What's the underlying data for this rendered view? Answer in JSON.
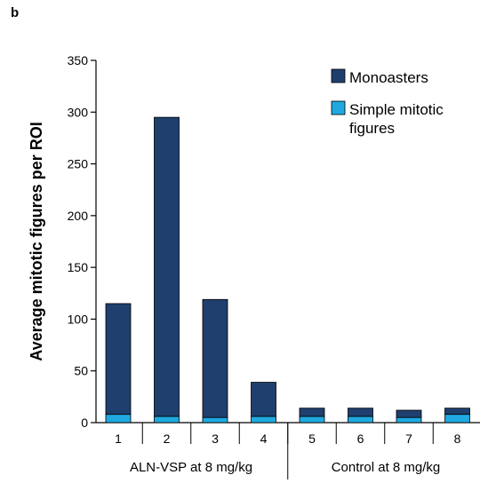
{
  "panel_label": "b",
  "chart_data": {
    "type": "bar",
    "stacked": true,
    "categories": [
      "1",
      "2",
      "3",
      "4",
      "5",
      "6",
      "7",
      "8"
    ],
    "series": [
      {
        "name": "Simple mitotic figures",
        "color": "#1fa9e0",
        "values": [
          8,
          6,
          5,
          6,
          6,
          6,
          5,
          8
        ]
      },
      {
        "name": "Monoasters",
        "color": "#1f3f6e",
        "values": [
          107,
          289,
          114,
          33,
          8,
          8,
          7,
          6
        ]
      }
    ],
    "legend_order": [
      "Monoasters",
      "Simple mitotic figures"
    ],
    "legend_lines": [
      [
        "Monoasters"
      ],
      [
        "Simple mitotic",
        "figures"
      ]
    ],
    "ylabel": "Average mitotic figures per ROI",
    "xlabel": "",
    "ylim": [
      0,
      350
    ],
    "yticks": [
      0,
      50,
      100,
      150,
      200,
      250,
      300,
      350
    ],
    "groups": [
      {
        "label": "ALN-VSP at 8 mg/kg",
        "categories": [
          "1",
          "2",
          "3",
          "4"
        ]
      },
      {
        "label": "Control at 8 mg/kg",
        "categories": [
          "5",
          "6",
          "7",
          "8"
        ]
      }
    ],
    "legend_position": "top-right",
    "grid": false
  }
}
